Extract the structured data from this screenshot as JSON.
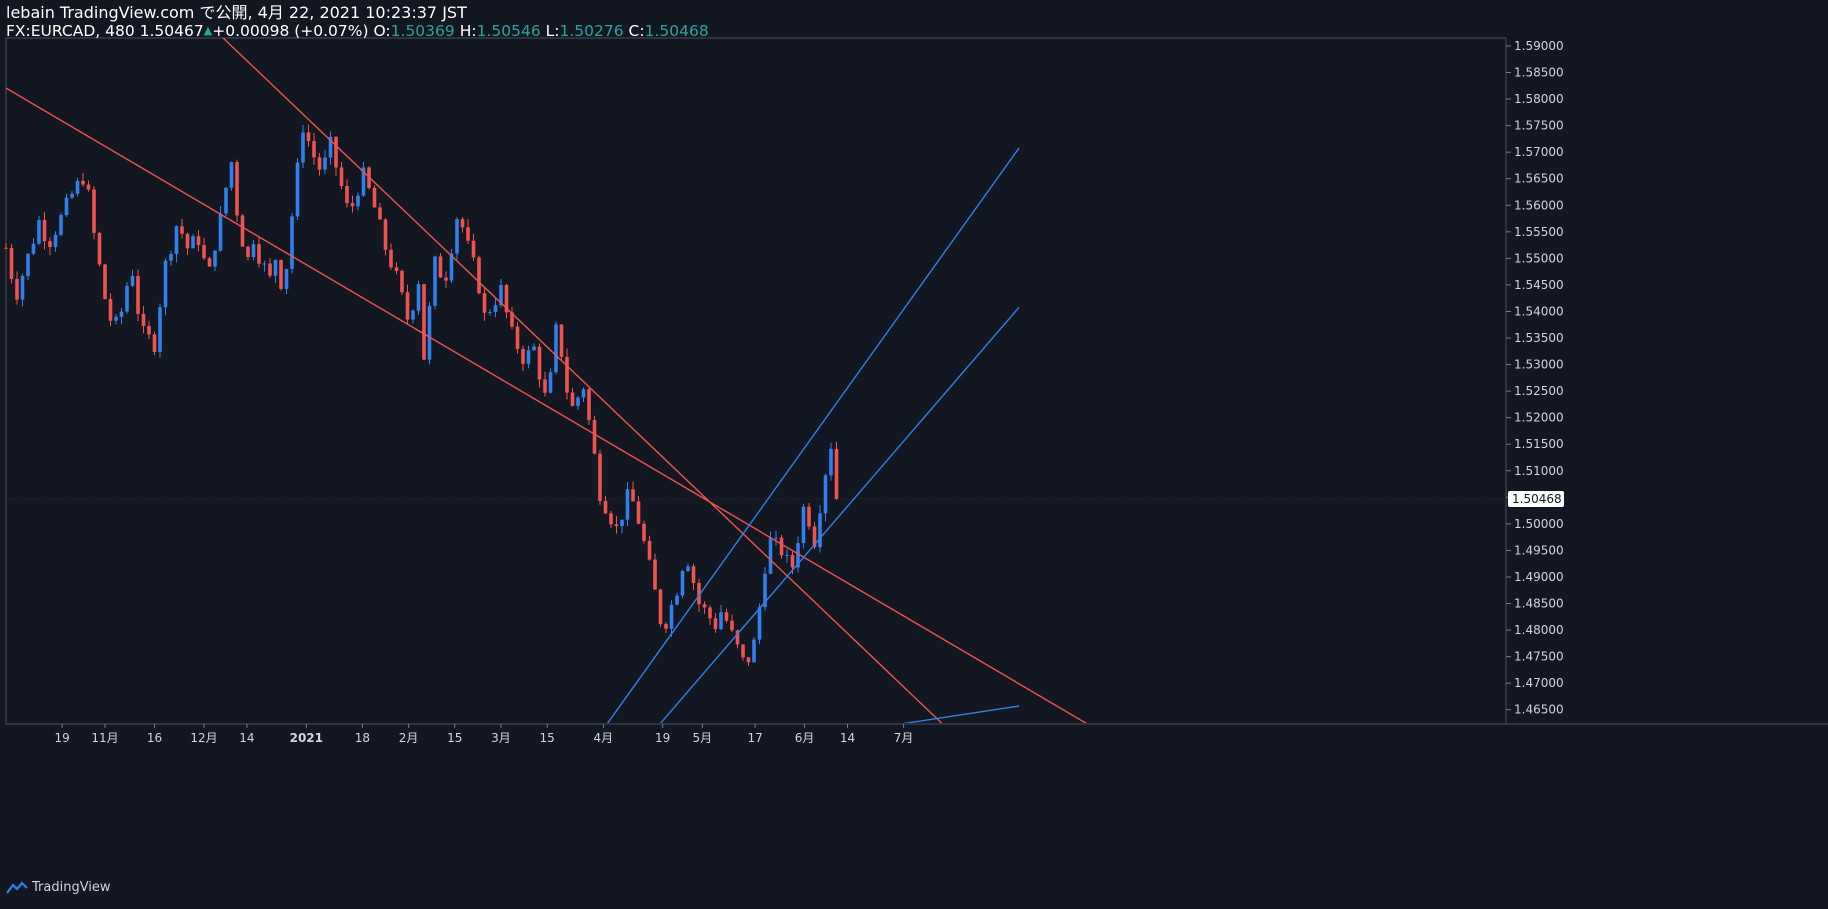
{
  "header": {
    "publish_line": "lebain TradingView.com で公開, 4月 22, 2021 10:23:37 JST",
    "symbol": "FX:EURCAD, 480",
    "last": "1.50467",
    "change": "+0.00098 (+0.07%)",
    "o_label": "O:",
    "o_value": "1.50369",
    "h_label": "H:",
    "h_value": "1.50546",
    "l_label": "L:",
    "l_value": "1.50276",
    "c_label": "C:",
    "c_value": "1.50468"
  },
  "footer": {
    "brand": "TradingView"
  },
  "colors": {
    "background": "#131722",
    "up": "#2f80ed",
    "down": "#ef5350",
    "text": "#d1d4dc",
    "price_tag_bg": "#ffffff",
    "channel_down": "#ef5350",
    "channel_up": "#2f80ed"
  },
  "chart_data": {
    "type": "candlestick",
    "symbol": "FX:EURCAD",
    "interval": "480",
    "ylim": [
      1.4625,
      1.5915
    ],
    "y_ticks": [
      "1.59000",
      "1.58500",
      "1.58000",
      "1.57500",
      "1.57000",
      "1.56500",
      "1.56000",
      "1.55500",
      "1.55000",
      "1.54500",
      "1.54000",
      "1.53500",
      "1.53000",
      "1.52500",
      "1.52000",
      "1.51500",
      "1.51000",
      "1.50500",
      "1.50000",
      "1.49500",
      "1.49000",
      "1.48500",
      "1.48000",
      "1.47500",
      "1.47000",
      "1.46500"
    ],
    "x_ticks": [
      "19",
      "11月",
      "16",
      "12月",
      "14",
      "2021",
      "18",
      "2月",
      "15",
      "3月",
      "15",
      "4月",
      "19",
      "5月",
      "17",
      "6月",
      "14",
      "7月"
    ],
    "current_price": "1.50468",
    "price_path": [
      [
        "10-02",
        1.552
      ],
      [
        "10-05",
        1.543
      ],
      [
        "10-08",
        1.549
      ],
      [
        "10-12",
        1.557
      ],
      [
        "10-15",
        1.553
      ],
      [
        "10-19",
        1.558
      ],
      [
        "10-22",
        1.562
      ],
      [
        "10-26",
        1.566
      ],
      [
        "10-29",
        1.553
      ],
      [
        "11-02",
        1.539
      ],
      [
        "11-05",
        1.537
      ],
      [
        "11-09",
        1.549
      ],
      [
        "11-12",
        1.536
      ],
      [
        "11-16",
        1.534
      ],
      [
        "11-19",
        1.548
      ],
      [
        "11-23",
        1.557
      ],
      [
        "11-26",
        1.552
      ],
      [
        "11-30",
        1.554
      ],
      [
        "12-02",
        1.545
      ],
      [
        "12-04",
        1.552
      ],
      [
        "12-07",
        1.56
      ],
      [
        "12-09",
        1.57
      ],
      [
        "12-11",
        1.559
      ],
      [
        "12-14",
        1.549
      ],
      [
        "12-16",
        1.554
      ],
      [
        "12-18",
        1.55
      ],
      [
        "12-21",
        1.546
      ],
      [
        "12-23",
        1.551
      ],
      [
        "12-25",
        1.543
      ],
      [
        "12-28",
        1.56
      ],
      [
        "12-31",
        1.575
      ],
      [
        "01-04",
        1.568
      ],
      [
        "01-06",
        1.566
      ],
      [
        "01-08",
        1.572
      ],
      [
        "01-11",
        1.565
      ],
      [
        "01-14",
        1.558
      ],
      [
        "01-18",
        1.566
      ],
      [
        "01-21",
        1.561
      ],
      [
        "01-25",
        1.552
      ],
      [
        "01-28",
        1.547
      ],
      [
        "02-01",
        1.538
      ],
      [
        "02-04",
        1.546
      ],
      [
        "02-05",
        1.528
      ],
      [
        "02-09",
        1.549
      ],
      [
        "02-12",
        1.546
      ],
      [
        "02-16",
        1.559
      ],
      [
        "02-19",
        1.552
      ],
      [
        "02-22",
        1.546
      ],
      [
        "02-24",
        1.539
      ],
      [
        "03-01",
        1.544
      ],
      [
        "03-04",
        1.536
      ],
      [
        "03-08",
        1.531
      ],
      [
        "03-11",
        1.533
      ],
      [
        "03-15",
        1.522
      ],
      [
        "03-18",
        1.538
      ],
      [
        "03-22",
        1.521
      ],
      [
        "03-26",
        1.526
      ],
      [
        "03-31",
        1.506
      ],
      [
        "04-05",
        1.499
      ],
      [
        "04-09",
        1.506
      ],
      [
        "04-12",
        1.5
      ],
      [
        "04-16",
        1.489
      ],
      [
        "04-19",
        1.48
      ],
      [
        "04-23",
        1.487
      ],
      [
        "04-26",
        1.495
      ],
      [
        "04-30",
        1.485
      ],
      [
        "05-05",
        1.481
      ],
      [
        "05-07",
        1.484
      ],
      [
        "05-10",
        1.479
      ],
      [
        "05-14",
        1.473
      ],
      [
        "05-17",
        1.478
      ],
      [
        "05-21",
        1.497
      ],
      [
        "05-25",
        1.495
      ],
      [
        "05-28",
        1.491
      ],
      [
        "06-01",
        1.504
      ],
      [
        "06-04",
        1.497
      ],
      [
        "06-07",
        1.509
      ],
      [
        "06-10",
        1.518
      ],
      [
        "06-11",
        1.5047
      ]
    ],
    "drawn_lines": [
      {
        "color": "down",
        "points": [
          [
            "09-30",
            1.5828
          ],
          [
            "08-26",
            1.4622
          ]
        ]
      },
      {
        "color": "down",
        "points": [
          [
            "11-27",
            1.5973
          ],
          [
            "07-13",
            1.4622
          ]
        ]
      },
      {
        "color": "up",
        "points": [
          [
            "04-02",
            1.4622
          ],
          [
            "08-05",
            1.5708
          ]
        ]
      },
      {
        "color": "up",
        "points": [
          [
            "04-18",
            1.4622
          ],
          [
            "08-05",
            1.5408
          ]
        ]
      },
      {
        "color": "up",
        "points": [
          [
            "06-29",
            1.4622
          ],
          [
            "08-05",
            1.4657
          ]
        ]
      }
    ]
  }
}
